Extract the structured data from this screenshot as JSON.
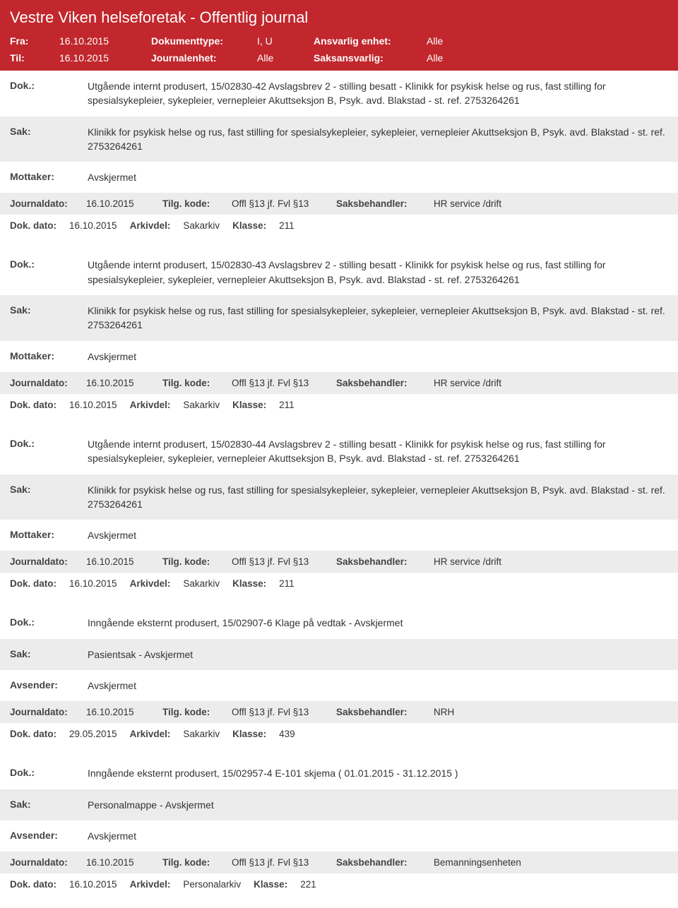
{
  "header": {
    "title": "Vestre Viken helseforetak - Offentlig journal",
    "row1": {
      "fraLabel": "Fra:",
      "fraVal": "16.10.2015",
      "doktypeLabel": "Dokumenttype:",
      "doktypeVal": "I, U",
      "ansvarligLabel": "Ansvarlig enhet:",
      "ansvarligVal": "Alle"
    },
    "row2": {
      "tilLabel": "Til:",
      "tilVal": "16.10.2015",
      "journalenhetLabel": "Journalenhet:",
      "journalenhetVal": "Alle",
      "saksLabel": "Saksansvarlig:",
      "saksVal": "Alle"
    }
  },
  "labels": {
    "dok": "Dok.:",
    "sak": "Sak:",
    "mottaker": "Mottaker:",
    "avsender": "Avsender:",
    "journaldato": "Journaldato:",
    "tilgkode": "Tilg. kode:",
    "saksbeh": "Saksbehandler:",
    "dokdato": "Dok. dato:",
    "arkivdel": "Arkivdel:",
    "klasse": "Klasse:"
  },
  "entries": [
    {
      "dok": "Utgående internt produsert, 15/02830-42 Avslagsbrev 2 - stilling besatt - Klinikk for psykisk helse og rus, fast stilling for spesialsykepleier, sykepleier, vernepleier Akuttseksjon B, Psyk. avd. Blakstad - st. ref. 2753264261",
      "sak": "Klinikk for psykisk helse og rus, fast stilling for spesialsykepleier, sykepleier, vernepleier Akuttseksjon B, Psyk. avd. Blakstad - st. ref. 2753264261",
      "partyLabel": "mottaker",
      "party": "Avskjermet",
      "journaldato": "16.10.2015",
      "tilgkode": "Offl §13 jf. Fvl §13",
      "saksbeh": "HR service /drift",
      "dokdato": "16.10.2015",
      "arkivdel": "Sakarkiv",
      "klasse": "211"
    },
    {
      "dok": "Utgående internt produsert, 15/02830-43 Avslagsbrev 2 - stilling besatt - Klinikk for psykisk helse og rus, fast stilling for spesialsykepleier, sykepleier, vernepleier Akuttseksjon B, Psyk. avd. Blakstad - st. ref. 2753264261",
      "sak": "Klinikk for psykisk helse og rus, fast stilling for spesialsykepleier, sykepleier, vernepleier Akuttseksjon B, Psyk. avd. Blakstad - st. ref. 2753264261",
      "partyLabel": "mottaker",
      "party": "Avskjermet",
      "journaldato": "16.10.2015",
      "tilgkode": "Offl §13 jf. Fvl §13",
      "saksbeh": "HR service /drift",
      "dokdato": "16.10.2015",
      "arkivdel": "Sakarkiv",
      "klasse": "211"
    },
    {
      "dok": "Utgående internt produsert, 15/02830-44 Avslagsbrev 2 - stilling besatt - Klinikk for psykisk helse og rus, fast stilling for spesialsykepleier, sykepleier, vernepleier Akuttseksjon B, Psyk. avd. Blakstad - st. ref. 2753264261",
      "sak": "Klinikk for psykisk helse og rus, fast stilling for spesialsykepleier, sykepleier, vernepleier Akuttseksjon B, Psyk. avd. Blakstad - st. ref. 2753264261",
      "partyLabel": "mottaker",
      "party": "Avskjermet",
      "journaldato": "16.10.2015",
      "tilgkode": "Offl §13 jf. Fvl §13",
      "saksbeh": "HR service /drift",
      "dokdato": "16.10.2015",
      "arkivdel": "Sakarkiv",
      "klasse": "211"
    },
    {
      "dok": "Inngående eksternt produsert, 15/02907-6 Klage på vedtak - Avskjermet",
      "sak": "Pasientsak - Avskjermet",
      "partyLabel": "avsender",
      "party": "Avskjermet",
      "journaldato": "16.10.2015",
      "tilgkode": "Offl §13 jf. Fvl §13",
      "saksbeh": "NRH",
      "dokdato": "29.05.2015",
      "arkivdel": "Sakarkiv",
      "klasse": "439"
    },
    {
      "dok": "Inngående eksternt produsert, 15/02957-4 E-101 skjema ( 01.01.2015 - 31.12.2015 )",
      "sak": "Personalmappe - Avskjermet",
      "partyLabel": "avsender",
      "party": "Avskjermet",
      "journaldato": "16.10.2015",
      "tilgkode": "Offl §13 jf. Fvl §13",
      "saksbeh": "Bemanningsenheten",
      "dokdato": "16.10.2015",
      "arkivdel": "Personalarkiv",
      "klasse": "221"
    }
  ],
  "colors": {
    "headerBg": "#c1272d",
    "grayBg": "#ececec"
  }
}
